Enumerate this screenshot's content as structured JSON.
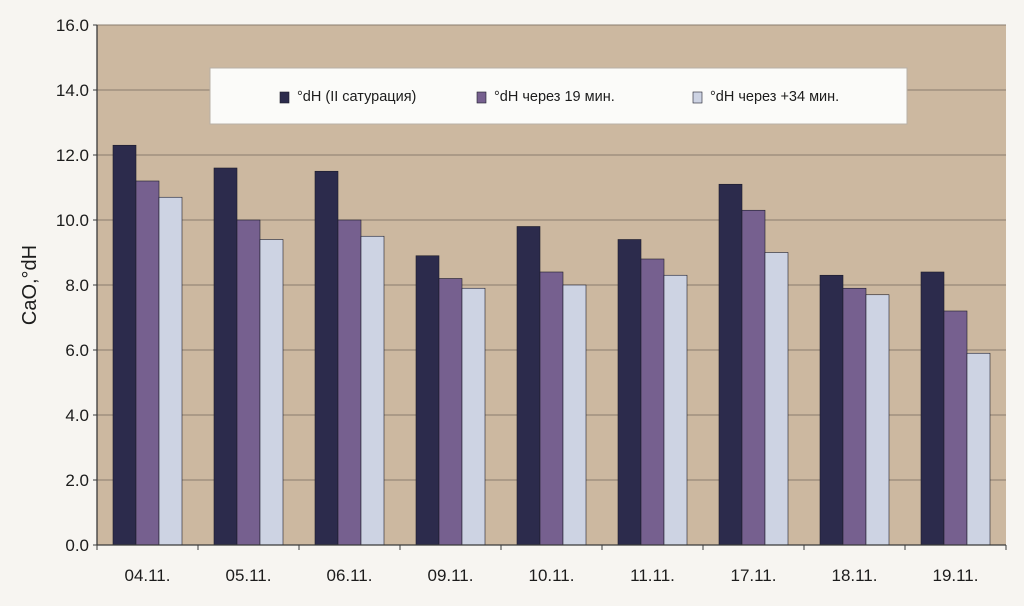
{
  "chart_data": {
    "type": "bar",
    "title": "",
    "xlabel": "",
    "ylabel": "CaO,°dH",
    "ylim": [
      0,
      16
    ],
    "yticks": [
      "0.0",
      "2.0",
      "4.0",
      "6.0",
      "8.0",
      "10.0",
      "12.0",
      "14.0",
      "16.0"
    ],
    "grid": true,
    "legend_position": "top",
    "categories": [
      "04.11.",
      "05.11.",
      "06.11.",
      "09.11.",
      "10.11.",
      "11.11.",
      "17.11.",
      "18.11.",
      "19.11."
    ],
    "series": [
      {
        "name": "°dH (II сатурация)",
        "color": "#2c2b4c",
        "values": [
          12.3,
          11.6,
          11.5,
          8.9,
          9.8,
          9.4,
          11.1,
          8.3,
          8.4
        ]
      },
      {
        "name": "°dH через 19 мин.",
        "color": "#76608f",
        "values": [
          11.2,
          10.0,
          10.0,
          8.2,
          8.4,
          8.8,
          10.3,
          7.9,
          7.2
        ]
      },
      {
        "name": "°dH через +34 мин.",
        "color": "#cdd3e3",
        "values": [
          10.7,
          9.4,
          9.5,
          7.9,
          8.0,
          8.3,
          9.0,
          7.7,
          5.9
        ]
      }
    ],
    "colors": {
      "plot_background": "#ccb8a0",
      "gridline": "#8a7d6e",
      "axis": "#3a3a3a",
      "legend_background": "#fbfbf9"
    }
  }
}
